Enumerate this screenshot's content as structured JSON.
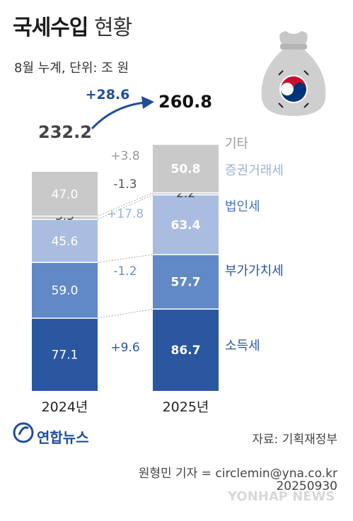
{
  "title_bold": "국세수입",
  "title_rest": "현황",
  "subtitle": "8월 누계, 단위: 조 원",
  "source": "자료: 기획재정부",
  "credit": "원형민 기자 = circlemin@yna.co.kr",
  "date": "20250930",
  "logo_text": "연합뉴스",
  "watermark": "YONHAP NEWS",
  "colors": {
    "소득세": "#2b57a0",
    "부가가치세": "#6189c6",
    "법인세": "#a9bde0",
    "증권거래세": "#c9c9c9",
    "기타": "#c9c9c9",
    "bag": "#cfcfcf"
  },
  "chart_data": {
    "type": "bar",
    "stacked": true,
    "categories": [
      "2024년",
      "2025년"
    ],
    "series": [
      {
        "name": "소득세",
        "values": [
          77.1,
          86.7
        ],
        "change": "+9.6"
      },
      {
        "name": "부가가치세",
        "values": [
          59.0,
          57.7
        ],
        "change": "-1.2"
      },
      {
        "name": "법인세",
        "values": [
          45.6,
          63.4
        ],
        "change": "+17.8"
      },
      {
        "name": "증권거래세",
        "values": [
          3.5,
          2.2
        ],
        "change": "-1.3"
      },
      {
        "name": "기타",
        "values": [
          47.0,
          50.8
        ],
        "change": "+3.8"
      }
    ],
    "value_labels": [
      [
        "77.1",
        "59.0",
        "45.6",
        "3.5",
        "47.0"
      ],
      [
        "86.7",
        "57.7",
        "63.4",
        "2.2",
        "50.8"
      ]
    ],
    "totals": [
      232.2,
      260.8
    ],
    "total_labels": [
      "232.2",
      "260.8"
    ],
    "total_change": "+28.6"
  }
}
